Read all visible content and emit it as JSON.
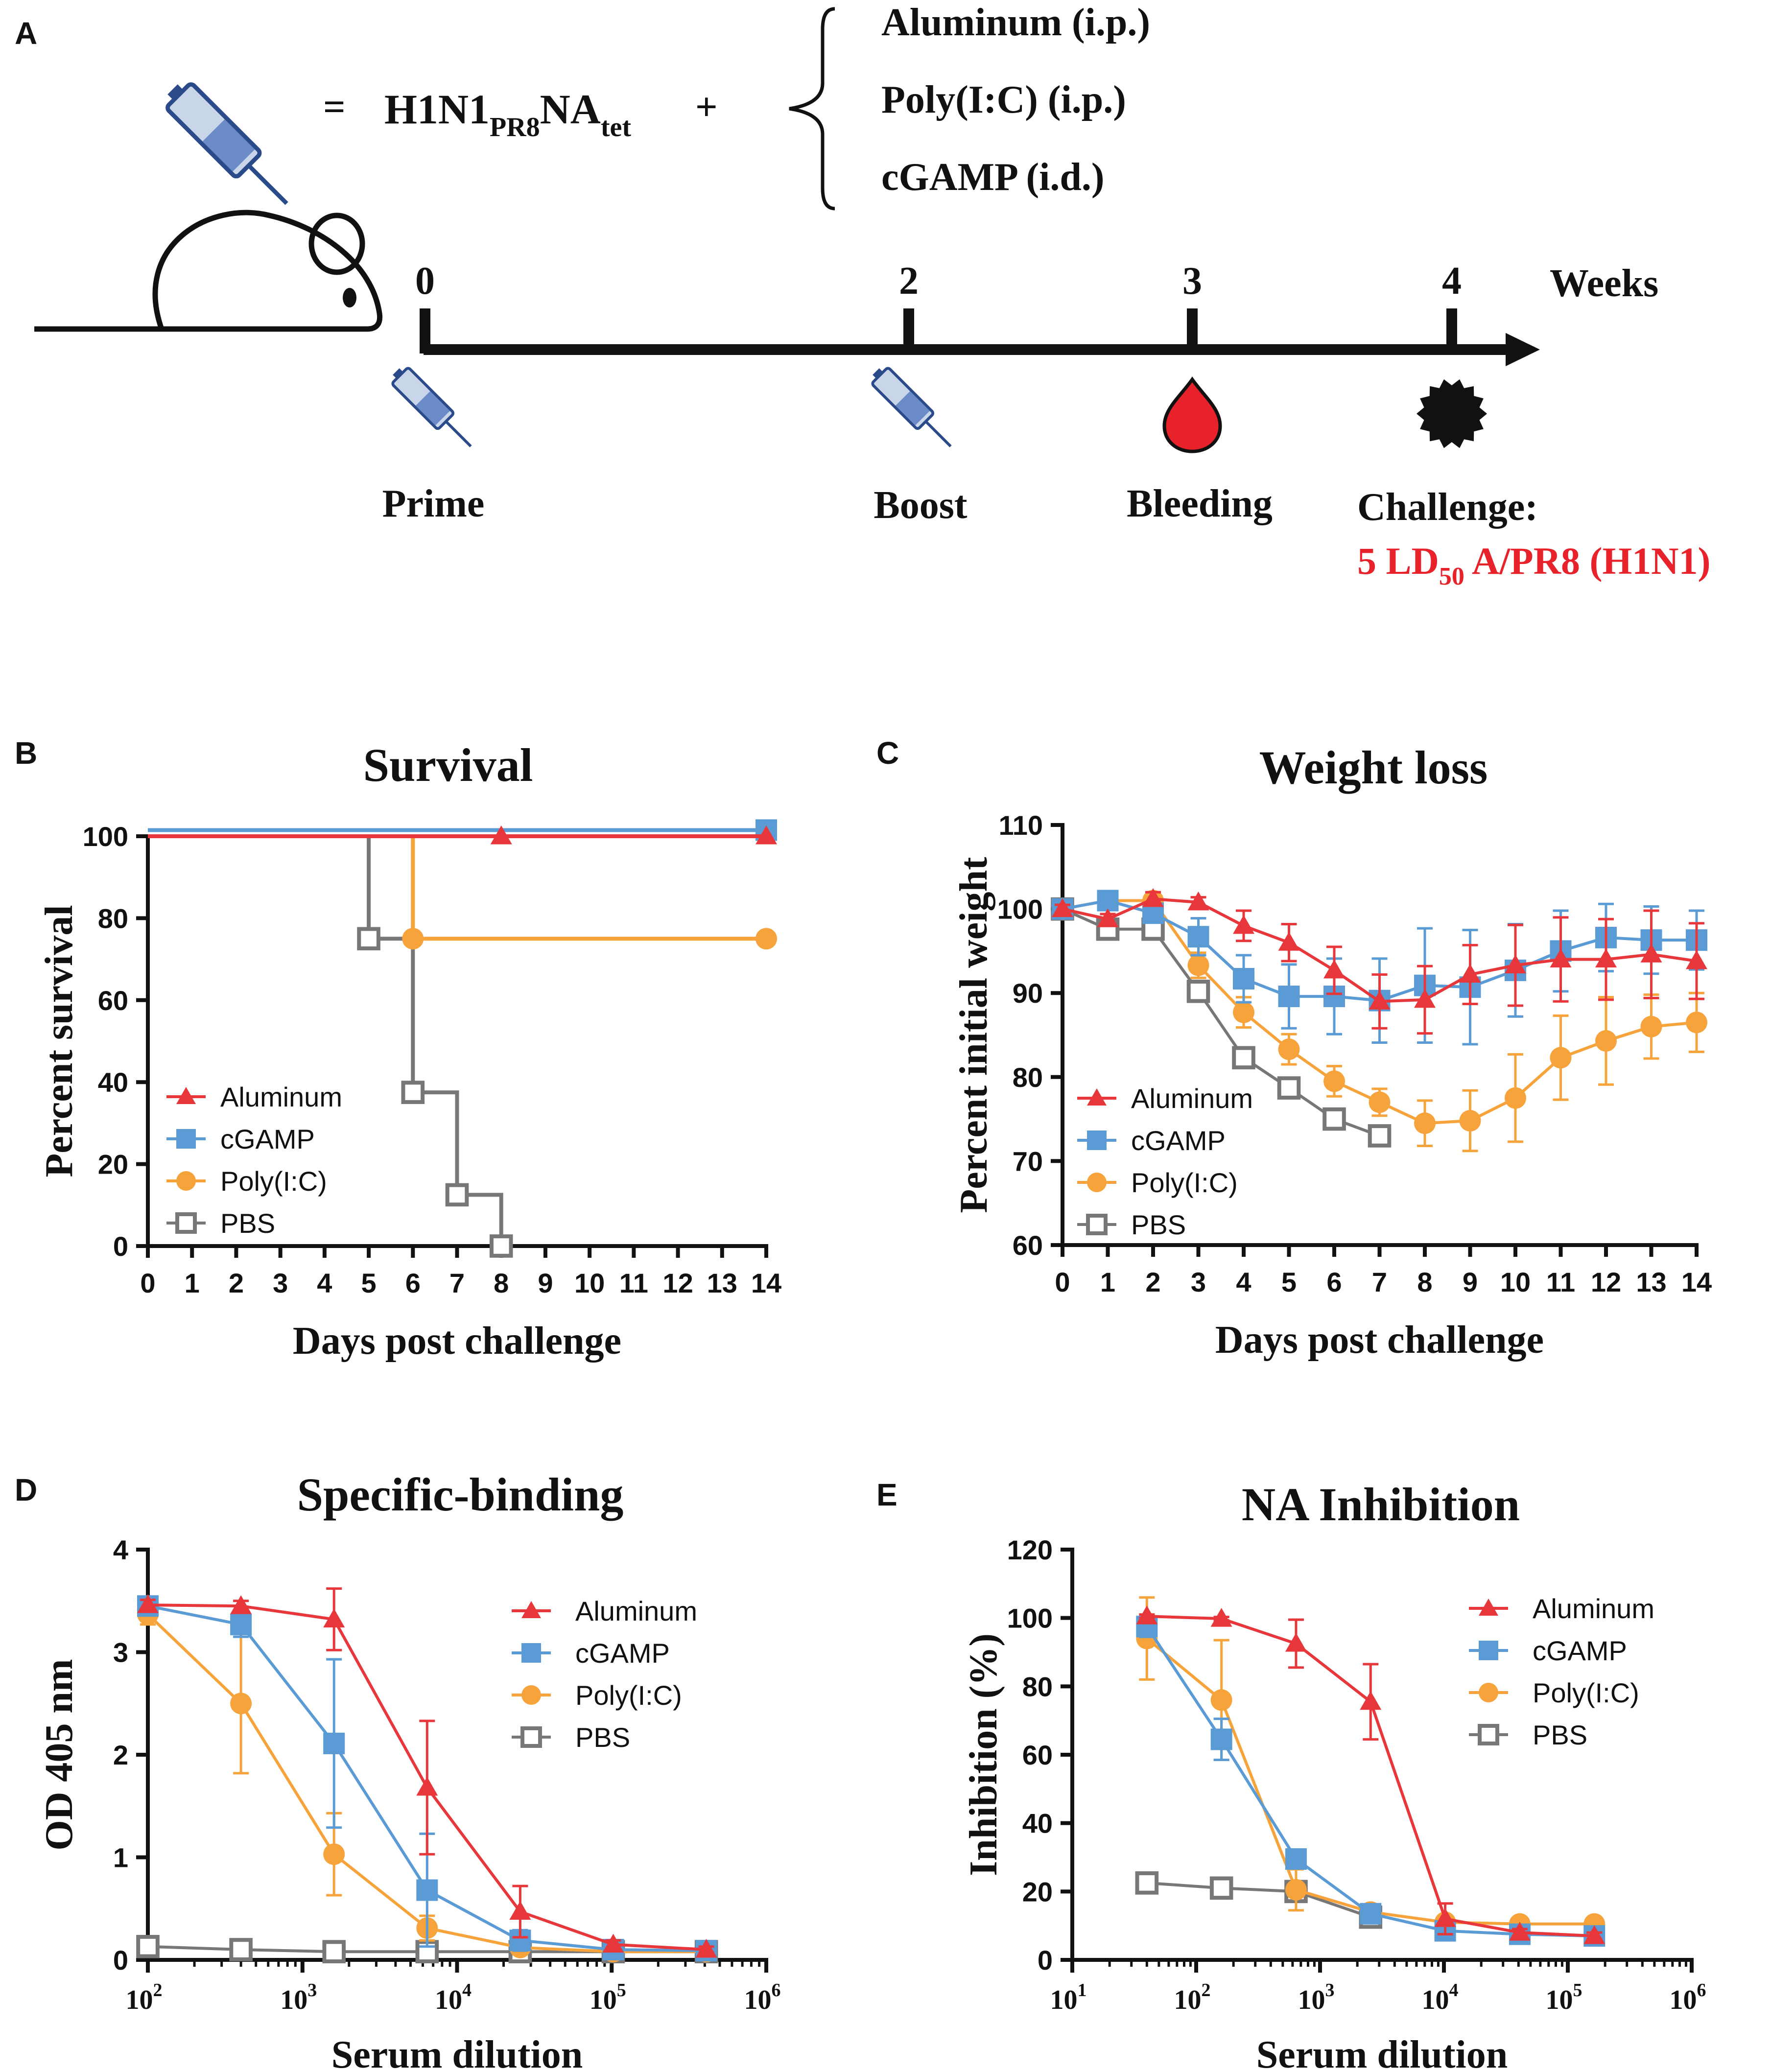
{
  "colors": {
    "aluminum": "#e8373a",
    "cgamp": "#5b9bd5",
    "polyic": "#f5a33a",
    "pbs": "#777777",
    "red_text": "#e8222a",
    "black": "#111111"
  },
  "panel_a": {
    "letter": "A",
    "equals": "=",
    "formula_main": "H1N1",
    "formula_sub1": "PR8",
    "formula_main2": "NA",
    "formula_sub2": "tet",
    "plus": "+",
    "adjuvants": [
      "Aluminum (i.p.)",
      "Poly(I:C) (i.p.)",
      "cGAMP (i.d.)"
    ],
    "timeline_unit": "Weeks",
    "ticks": [
      {
        "week": "0",
        "label": "Prime",
        "marker": "syringe-icon"
      },
      {
        "week": "2",
        "label": "Boost",
        "marker": "syringe-icon"
      },
      {
        "week": "3",
        "label": "Bleeding",
        "marker": "blood-drop-icon"
      },
      {
        "week": "4",
        "label": "Challenge",
        "marker": "virus-icon"
      }
    ],
    "challenge_colon": ":",
    "challenge_dose_main": "5 LD",
    "challenge_dose_sub": "50",
    "challenge_dose_rest": " A/PR8 (H1N1)"
  },
  "chart_data": [
    {
      "panel": "B",
      "type": "line",
      "step": true,
      "title": "Survival",
      "xlabel": "Days post challenge",
      "ylabel": "Percent survival",
      "xlim": [
        0,
        14
      ],
      "ylim": [
        0,
        100
      ],
      "xticks": [
        "0",
        "1",
        "2",
        "3",
        "4",
        "5",
        "6",
        "7",
        "8",
        "9",
        "10",
        "11",
        "12",
        "13",
        "14"
      ],
      "yticks": [
        "0",
        "20",
        "40",
        "60",
        "80",
        "100"
      ],
      "legend": [
        "Aluminum",
        "cGAMP",
        "Poly(I:C)",
        "PBS"
      ],
      "series": [
        {
          "name": "Aluminum",
          "key": "aluminum",
          "marker": "triangle",
          "x": [
            0,
            14
          ],
          "y": [
            100,
            100
          ],
          "marker_points": [
            [
              8,
              100
            ],
            [
              14,
              100
            ]
          ]
        },
        {
          "name": "cGAMP",
          "key": "cgamp",
          "marker": "square",
          "x": [
            0,
            14
          ],
          "y": [
            101.5,
            101.5
          ],
          "marker_points": [
            [
              14,
              101.5
            ]
          ]
        },
        {
          "name": "Poly(I:C)",
          "key": "polyic",
          "marker": "circle",
          "x": [
            0,
            6,
            14
          ],
          "y": [
            100,
            75,
            75
          ],
          "marker_points": [
            [
              6,
              75
            ],
            [
              14,
              75
            ]
          ]
        },
        {
          "name": "PBS",
          "key": "pbs",
          "marker": "open-square",
          "x": [
            0,
            5,
            6,
            7,
            8
          ],
          "y": [
            100,
            75,
            37.5,
            12.5,
            0
          ],
          "marker_points": [
            [
              5,
              75
            ],
            [
              6,
              37.5
            ],
            [
              7,
              12.5
            ],
            [
              8,
              0
            ]
          ]
        }
      ]
    },
    {
      "panel": "C",
      "type": "line",
      "title": "Weight loss",
      "xlabel": "Days post challenge",
      "ylabel": "Percent initial weight",
      "xlim": [
        0,
        14
      ],
      "ylim": [
        60,
        110
      ],
      "xticks": [
        "0",
        "1",
        "2",
        "3",
        "4",
        "5",
        "6",
        "7",
        "8",
        "9",
        "10",
        "11",
        "12",
        "13",
        "14"
      ],
      "yticks": [
        "60",
        "70",
        "80",
        "90",
        "100",
        "110"
      ],
      "legend": [
        "Aluminum",
        "cGAMP",
        "Poly(I:C)",
        "PBS"
      ],
      "series": [
        {
          "name": "Aluminum",
          "key": "aluminum",
          "marker": "triangle",
          "x": [
            0,
            1,
            2,
            3,
            4,
            5,
            6,
            7,
            8,
            9,
            10,
            11,
            12,
            13,
            14
          ],
          "y": [
            100,
            98.8,
            101.2,
            100.8,
            98,
            96,
            92.7,
            89,
            89.2,
            92.2,
            93.3,
            94,
            94,
            94.6,
            93.8
          ],
          "err": [
            0.5,
            0.6,
            0.8,
            0.6,
            1.8,
            2.2,
            2.8,
            3.2,
            4,
            3.5,
            4.8,
            5,
            4.8,
            5.2,
            4.5
          ]
        },
        {
          "name": "cGAMP",
          "key": "cgamp",
          "marker": "square",
          "x": [
            0,
            1,
            2,
            3,
            4,
            5,
            6,
            7,
            8,
            9,
            10,
            11,
            12,
            13,
            14
          ],
          "y": [
            100,
            101,
            99.5,
            96.7,
            91.7,
            89.6,
            89.6,
            89.1,
            90.9,
            90.7,
            92.7,
            95,
            96.6,
            96.3,
            96.3
          ],
          "err": [
            0.3,
            0.4,
            1,
            2.2,
            2.8,
            3.8,
            4.5,
            5,
            6.8,
            6.8,
            5.5,
            4.8,
            4,
            4,
            3.5
          ]
        },
        {
          "name": "Poly(I:C)",
          "key": "polyic",
          "marker": "circle",
          "x": [
            0,
            1,
            2,
            3,
            4,
            5,
            6,
            7,
            8,
            9,
            10,
            11,
            12,
            13,
            14
          ],
          "y": [
            100,
            101,
            101,
            93.3,
            87.7,
            83.3,
            79.5,
            77,
            74.5,
            74.8,
            77.5,
            82.3,
            84.3,
            86,
            86.5
          ],
          "err": [
            0.3,
            0.4,
            0.5,
            1.5,
            1.8,
            1.8,
            1.8,
            1.6,
            2.7,
            3.6,
            5.2,
            5,
            5.2,
            3.8,
            3.5
          ]
        },
        {
          "name": "PBS",
          "key": "pbs",
          "marker": "open-square",
          "x": [
            0,
            1,
            2,
            3,
            4,
            5,
            6,
            7
          ],
          "y": [
            100,
            97.6,
            97.6,
            90.2,
            82.3,
            78.7,
            75,
            73
          ],
          "err": [
            0,
            0,
            0,
            0,
            0,
            0,
            0,
            0
          ]
        }
      ]
    },
    {
      "panel": "D",
      "type": "line",
      "xscale": "log",
      "title": "Specific-binding",
      "xlabel": "Serum dilution",
      "ylabel": "OD 405 nm",
      "xlim": [
        100,
        1000000
      ],
      "ylim": [
        0,
        4
      ],
      "xtick_values": [
        100,
        1000,
        10000,
        100000,
        1000000
      ],
      "xticks_exponent": [
        "2",
        "3",
        "4",
        "5",
        "6"
      ],
      "yticks": [
        "0",
        "1",
        "2",
        "3",
        "4"
      ],
      "legend": [
        "Aluminum",
        "cGAMP",
        "Poly(I:C)",
        "PBS"
      ],
      "series": [
        {
          "name": "Aluminum",
          "key": "aluminum",
          "marker": "triangle",
          "x": [
            100,
            400,
            1600,
            6400,
            25600,
            102400,
            409600
          ],
          "y": [
            3.46,
            3.45,
            3.32,
            1.68,
            0.47,
            0.15,
            0.1
          ],
          "err": [
            0.05,
            0.05,
            0.3,
            0.65,
            0.25,
            0.04,
            0.03
          ]
        },
        {
          "name": "cGAMP",
          "key": "cgamp",
          "marker": "square",
          "x": [
            100,
            400,
            1600,
            6400,
            25600,
            102400,
            409600
          ],
          "y": [
            3.45,
            3.27,
            2.11,
            0.68,
            0.19,
            0.1,
            0.09
          ],
          "err": [
            0.05,
            0.12,
            0.82,
            0.55,
            0.1,
            0.03,
            0.02
          ]
        },
        {
          "name": "Poly(I:C)",
          "key": "polyic",
          "marker": "circle",
          "x": [
            100,
            400,
            1600,
            6400,
            25600,
            102400,
            409600
          ],
          "y": [
            3.37,
            2.5,
            1.03,
            0.31,
            0.12,
            0.08,
            0.08
          ],
          "err": [
            0.1,
            0.68,
            0.4,
            0.12,
            0.04,
            0.02,
            0.02
          ]
        },
        {
          "name": "PBS",
          "key": "pbs",
          "marker": "open-square",
          "x": [
            100,
            400,
            1600,
            6400,
            25600,
            102400,
            409600
          ],
          "y": [
            0.13,
            0.1,
            0.08,
            0.08,
            0.08,
            0.08,
            0.08
          ],
          "err": [
            0,
            0,
            0,
            0,
            0,
            0,
            0
          ]
        }
      ]
    },
    {
      "panel": "E",
      "type": "line",
      "xscale": "log",
      "title": "NA Inhibition",
      "xlabel": "Serum dilution",
      "ylabel": "Inhibition (%)",
      "xlim": [
        10,
        1000000
      ],
      "ylim": [
        0,
        120
      ],
      "xtick_values": [
        10,
        100,
        1000,
        10000,
        100000,
        1000000
      ],
      "xticks_exponent": [
        "1",
        "2",
        "3",
        "4",
        "5",
        "6"
      ],
      "yticks": [
        "0",
        "20",
        "40",
        "60",
        "80",
        "100",
        "120"
      ],
      "legend": [
        "Aluminum",
        "cGAMP",
        "Poly(I:C)",
        "PBS"
      ],
      "series": [
        {
          "name": "Aluminum",
          "key": "aluminum",
          "marker": "triangle",
          "x": [
            40,
            160,
            640,
            2560,
            10240,
            40960,
            163840
          ],
          "y": [
            100.5,
            99.8,
            92.5,
            75.5,
            12,
            8,
            7
          ],
          "err": [
            0.5,
            0.5,
            7,
            11,
            4.5,
            1,
            1
          ]
        },
        {
          "name": "cGAMP",
          "key": "cgamp",
          "marker": "square",
          "x": [
            40,
            160,
            640,
            2560,
            10240,
            40960,
            163840
          ],
          "y": [
            97.5,
            64.5,
            29.5,
            13.5,
            8.5,
            7.5,
            7
          ],
          "err": [
            3,
            6,
            2,
            2,
            1,
            1,
            1
          ]
        },
        {
          "name": "Poly(I:C)",
          "key": "polyic",
          "marker": "circle",
          "x": [
            40,
            160,
            640,
            2560,
            10240,
            40960,
            163840
          ],
          "y": [
            94,
            76,
            20.5,
            14,
            11,
            10.5,
            10.5
          ],
          "err": [
            12,
            17.5,
            6,
            2,
            1,
            1,
            1
          ]
        },
        {
          "name": "PBS",
          "key": "pbs",
          "marker": "open-square",
          "x": [
            40,
            160,
            640,
            2560
          ],
          "y": [
            22.5,
            21,
            20,
            12.5
          ],
          "err": [
            0,
            0,
            0,
            0
          ]
        }
      ]
    }
  ]
}
